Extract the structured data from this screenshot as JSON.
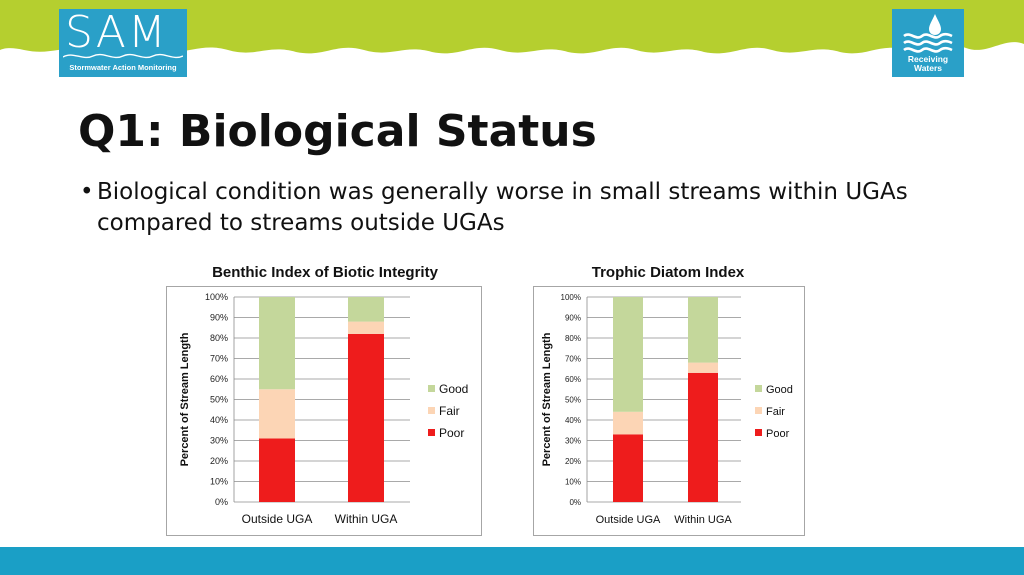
{
  "header": {
    "sam_logo": {
      "word": "SAM",
      "tagline": "Stormwater Action Monitoring"
    },
    "rw_logo": {
      "line1": "Receiving",
      "line2": "Waters"
    },
    "colors": {
      "wave": "#b5cf2f",
      "logo_bg": "#2aa0c8"
    }
  },
  "slide": {
    "title": "Q1: Biological Status",
    "bullet": "Biological condition was generally worse in small streams within UGAs compared to streams outside UGAs",
    "bullet_marker": "•"
  },
  "chart_data": [
    {
      "type": "bar",
      "stacked": true,
      "title": "Benthic Index of Biotic Integrity",
      "ylabel": "Percent of Stream Length",
      "xlabel": "",
      "categories": [
        "Outside UGA",
        "Within UGA"
      ],
      "series": [
        {
          "name": "Poor",
          "color": "#ee1c1c",
          "values": [
            31,
            82
          ]
        },
        {
          "name": "Fair",
          "color": "#fcd5b5",
          "values": [
            24,
            6
          ]
        },
        {
          "name": "Good",
          "color": "#c4d79b",
          "values": [
            45,
            12
          ]
        }
      ],
      "yticks": [
        "0%",
        "10%",
        "20%",
        "30%",
        "40%",
        "50%",
        "60%",
        "70%",
        "80%",
        "90%",
        "100%"
      ],
      "ylim": [
        0,
        100
      ],
      "legend": "right",
      "grid": true
    },
    {
      "type": "bar",
      "stacked": true,
      "title": "Trophic Diatom Index",
      "ylabel": "Percent of Stream Length",
      "xlabel": "",
      "categories": [
        "Outside UGA",
        "Within UGA"
      ],
      "series": [
        {
          "name": "Poor",
          "color": "#ee1c1c",
          "values": [
            33,
            63
          ]
        },
        {
          "name": "Fair",
          "color": "#fcd5b5",
          "values": [
            11,
            5
          ]
        },
        {
          "name": "Good",
          "color": "#c4d79b",
          "values": [
            56,
            32
          ]
        }
      ],
      "yticks": [
        "0%",
        "10%",
        "20%",
        "30%",
        "40%",
        "50%",
        "60%",
        "70%",
        "80%",
        "90%",
        "100%"
      ],
      "ylim": [
        0,
        100
      ],
      "legend": "right",
      "grid": true
    }
  ]
}
